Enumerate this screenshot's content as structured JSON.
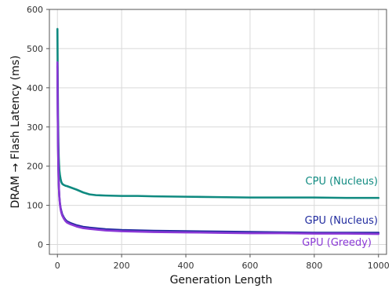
{
  "chart_data": {
    "type": "line",
    "xlabel": "Generation Length",
    "ylabel": "DRAM → Flash   Latency (ms)",
    "xlim": [
      -25,
      1025
    ],
    "ylim": [
      -25,
      600
    ],
    "xticks": [
      0,
      200,
      400,
      600,
      800,
      1000
    ],
    "yticks": [
      0,
      100,
      200,
      300,
      400,
      500,
      600
    ],
    "grid": true,
    "series": [
      {
        "name": "CPU (Nucleus)",
        "color": "#0f8a80",
        "x": [
          0,
          1,
          2,
          3,
          4,
          5,
          6,
          8,
          10,
          12,
          15,
          20,
          25,
          30,
          40,
          50,
          60,
          80,
          100,
          120,
          150,
          200,
          250,
          300,
          400,
          500,
          600,
          700,
          800,
          900,
          1000
        ],
        "y": [
          550,
          420,
          320,
          262,
          225,
          205,
          190,
          176,
          167,
          160,
          155,
          152,
          150,
          149,
          146,
          143,
          140,
          133,
          128,
          126,
          125,
          124,
          124,
          123,
          122,
          121,
          120,
          120,
          120,
          119,
          119
        ]
      },
      {
        "name": "GPU (Nucleus)",
        "color": "#1f2a9e",
        "x": [
          0,
          1,
          2,
          3,
          4,
          5,
          6,
          8,
          10,
          12,
          15,
          20,
          25,
          30,
          40,
          50,
          60,
          80,
          100,
          150,
          200,
          250,
          300,
          400,
          500,
          600,
          700,
          800,
          900,
          1000
        ],
        "y": [
          455,
          330,
          250,
          195,
          160,
          138,
          122,
          104,
          93,
          86,
          77,
          69,
          63,
          59,
          55,
          52,
          49,
          45,
          43,
          39,
          37,
          36,
          35,
          34,
          33,
          32,
          31,
          30,
          30,
          30
        ]
      },
      {
        "name": "GPU (Greedy)",
        "color": "#8a38d6",
        "x": [
          0,
          1,
          2,
          3,
          4,
          5,
          6,
          8,
          10,
          12,
          15,
          20,
          25,
          30,
          40,
          50,
          60,
          80,
          100,
          150,
          200,
          250,
          300,
          400,
          500,
          600,
          700,
          800,
          900,
          1000
        ],
        "y": [
          465,
          340,
          255,
          198,
          162,
          138,
          120,
          102,
          90,
          82,
          74,
          66,
          60,
          56,
          52,
          49,
          46,
          42,
          40,
          36,
          34,
          33,
          32,
          31,
          30,
          29,
          29,
          28,
          28,
          27
        ]
      }
    ]
  }
}
